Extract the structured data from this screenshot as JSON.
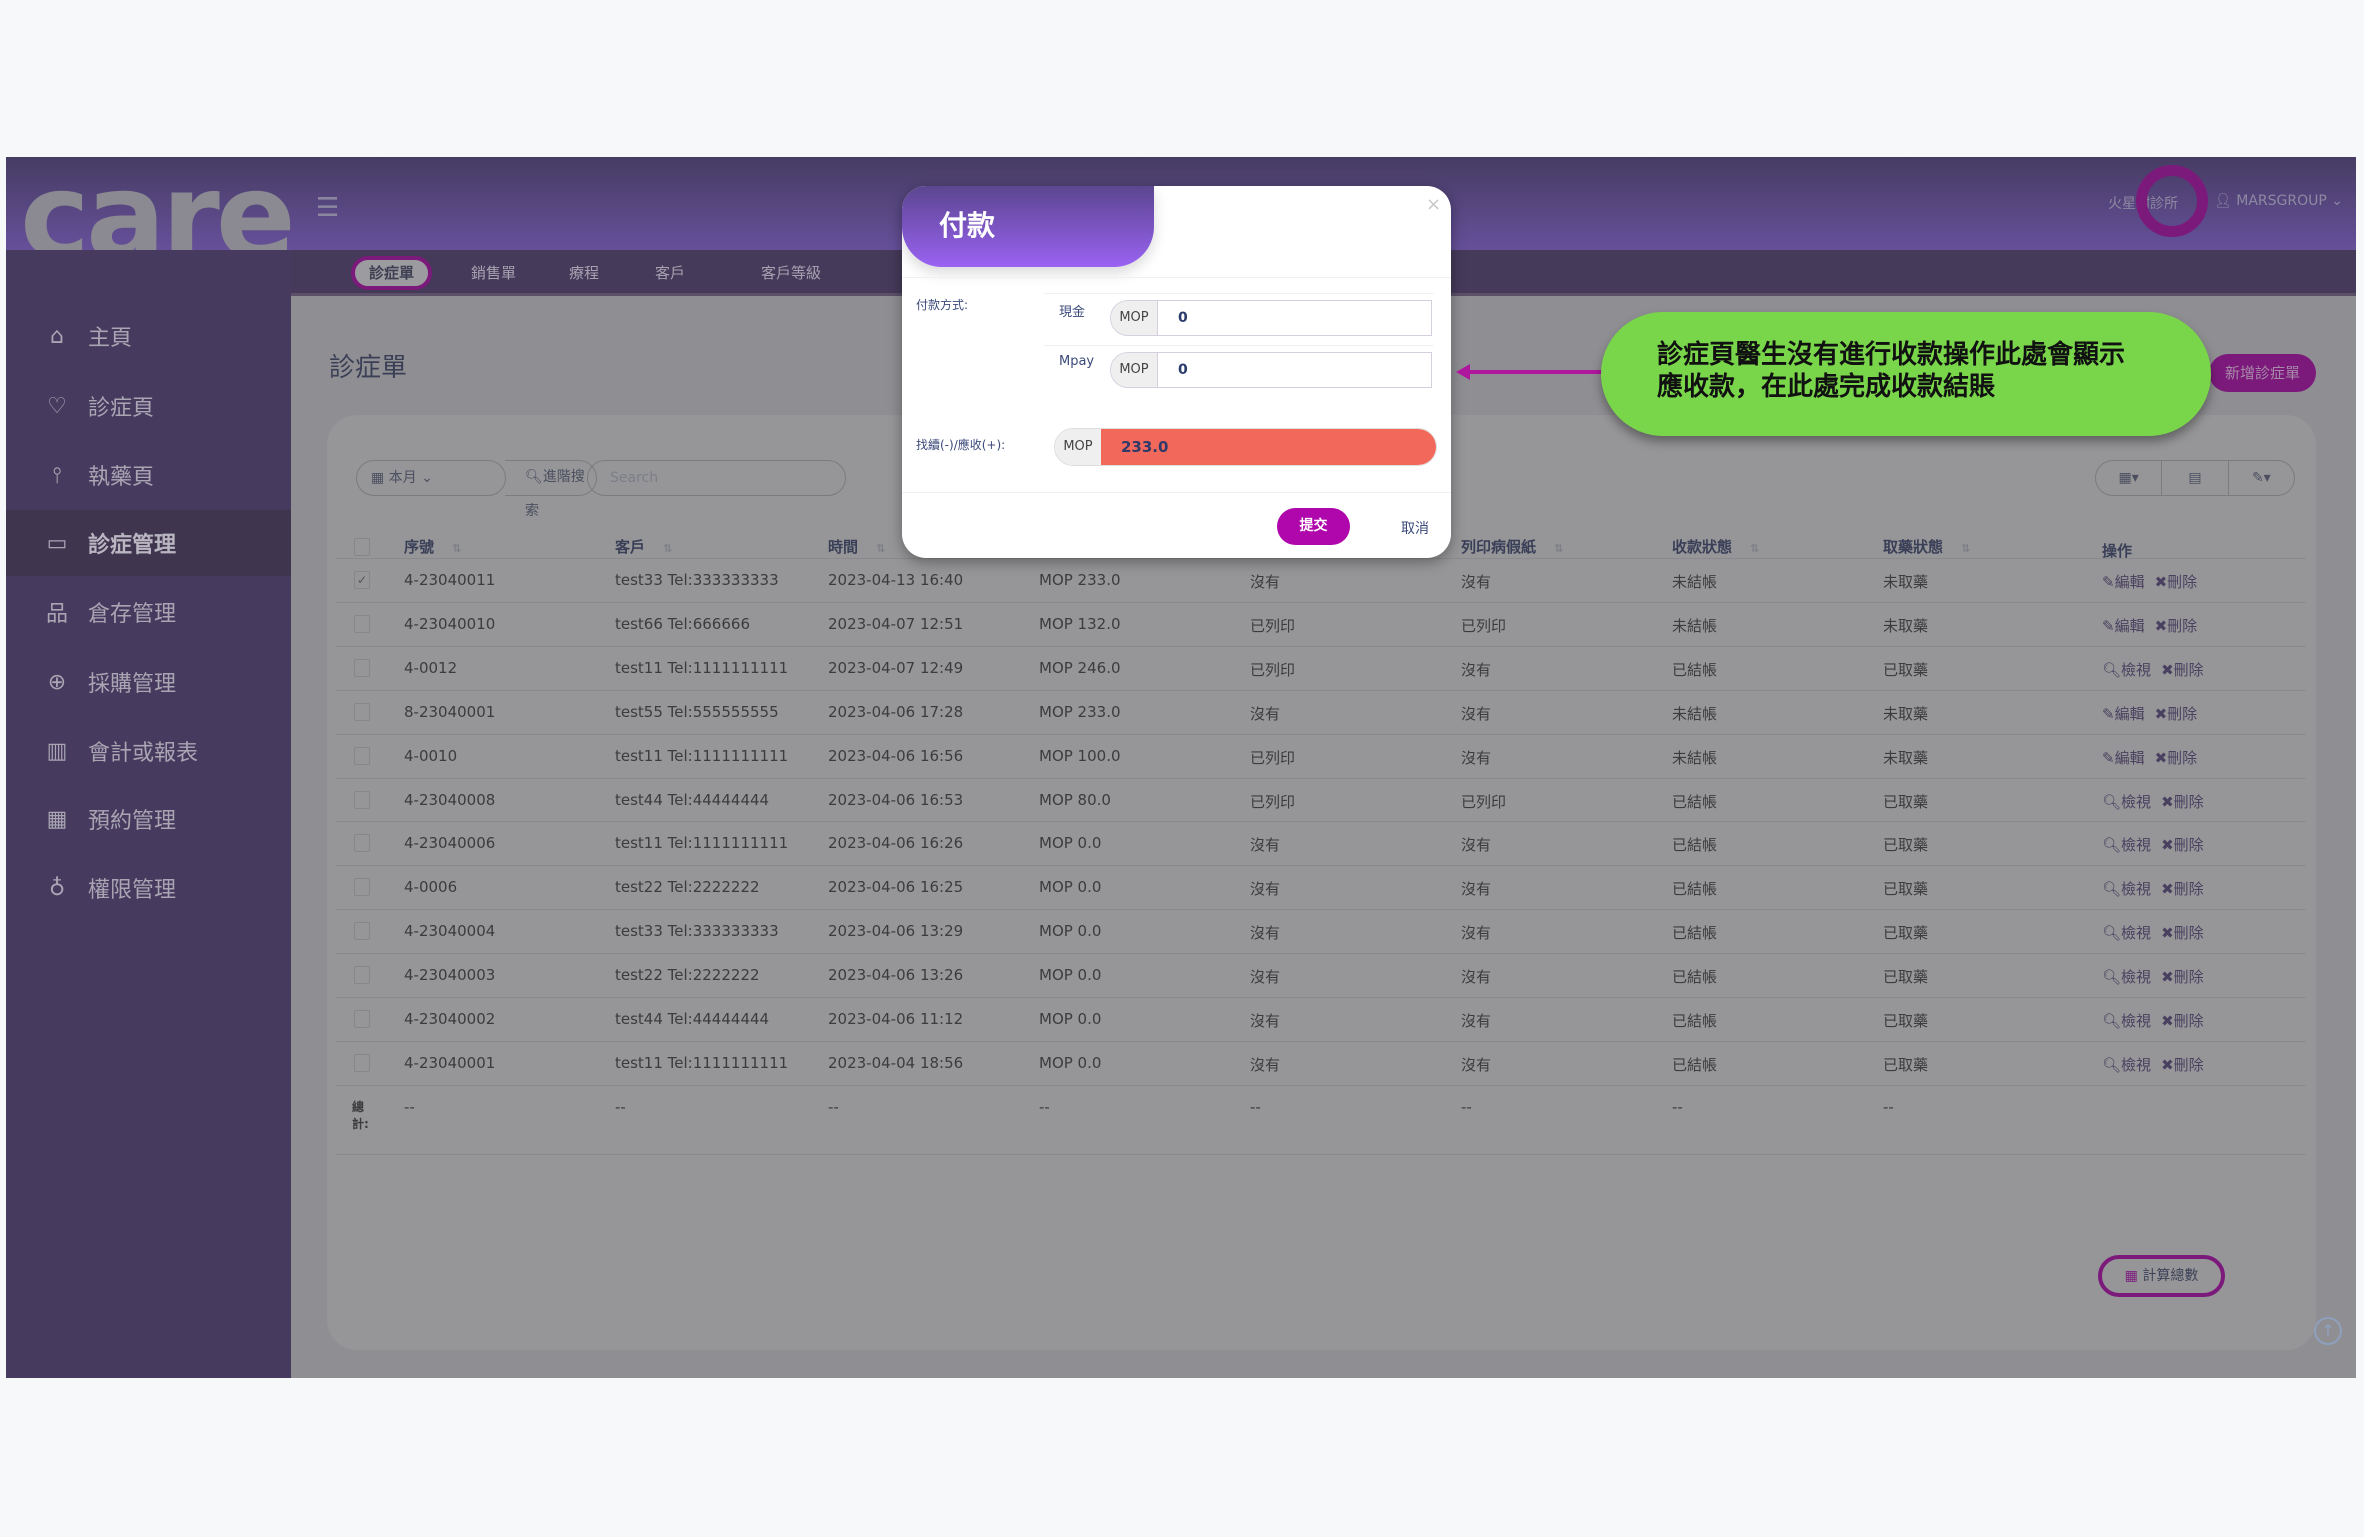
{
  "logo": {
    "text": "care"
  },
  "header": {
    "clinic": "火星樹診所",
    "user": "MARSGROUP"
  },
  "sidebar": {
    "items": [
      {
        "label": "主頁",
        "icon": "home-icon"
      },
      {
        "label": "診症頁",
        "icon": "heart-icon"
      },
      {
        "label": "執藥頁",
        "icon": "pestle-icon"
      },
      {
        "label": "診症管理",
        "icon": "card-icon",
        "active": true
      },
      {
        "label": "倉存管理",
        "icon": "sitemap-icon"
      },
      {
        "label": "採購管理",
        "icon": "plus-circle-icon"
      },
      {
        "label": "會計或報表",
        "icon": "bar-chart-icon"
      },
      {
        "label": "預約管理",
        "icon": "calendar-icon"
      },
      {
        "label": "權限管理",
        "icon": "globe-icon"
      }
    ]
  },
  "tabs": [
    {
      "label": "診症單",
      "active": true
    },
    {
      "label": "銷售單"
    },
    {
      "label": "療程"
    },
    {
      "label": "客戶"
    },
    {
      "label": "客戶等級"
    }
  ],
  "main": {
    "title": "診症單",
    "new_button": "新增診症單",
    "period_filter": "本月",
    "advanced_search": "進階搜索",
    "search_placeholder": "Search",
    "columns": [
      "序號",
      "客戶",
      "時間",
      "",
      "",
      "列印病假紙",
      "收款狀態",
      "取藥狀態",
      "操作"
    ],
    "rows": [
      {
        "checked": true,
        "id": "4-23040011",
        "customer": "test33 Tel:333333333",
        "time": "2023-04-13 16:40",
        "amount": "MOP 233.0",
        "c5": "沒有",
        "sick_note": "沒有",
        "payment": "未結帳",
        "pickup": "未取藥",
        "action": "edit"
      },
      {
        "id": "4-23040010",
        "customer": "test66 Tel:666666",
        "time": "2023-04-07 12:51",
        "amount": "MOP 132.0",
        "c5": "已列印",
        "sick_note": "已列印",
        "payment": "未結帳",
        "pickup": "未取藥",
        "action": "edit"
      },
      {
        "id": "4-0012",
        "customer": "test11 Tel:1111111111",
        "time": "2023-04-07 12:49",
        "amount": "MOP 246.0",
        "c5": "已列印",
        "sick_note": "沒有",
        "payment": "已結帳",
        "pickup": "已取藥",
        "action": "view"
      },
      {
        "id": "8-23040001",
        "customer": "test55 Tel:555555555",
        "time": "2023-04-06 17:28",
        "amount": "MOP 233.0",
        "c5": "沒有",
        "sick_note": "沒有",
        "payment": "未結帳",
        "pickup": "未取藥",
        "action": "edit"
      },
      {
        "id": "4-0010",
        "customer": "test11 Tel:1111111111",
        "time": "2023-04-06 16:56",
        "amount": "MOP 100.0",
        "c5": "已列印",
        "sick_note": "沒有",
        "payment": "未結帳",
        "pickup": "未取藥",
        "action": "edit"
      },
      {
        "id": "4-23040008",
        "customer": "test44 Tel:44444444",
        "time": "2023-04-06 16:53",
        "amount": "MOP 80.0",
        "c5": "已列印",
        "sick_note": "已列印",
        "payment": "已結帳",
        "pickup": "已取藥",
        "action": "view"
      },
      {
        "id": "4-23040006",
        "customer": "test11 Tel:1111111111",
        "time": "2023-04-06 16:26",
        "amount": "MOP 0.0",
        "c5": "沒有",
        "sick_note": "沒有",
        "payment": "已結帳",
        "pickup": "已取藥",
        "action": "view"
      },
      {
        "id": "4-0006",
        "customer": "test22 Tel:2222222",
        "time": "2023-04-06 16:25",
        "amount": "MOP 0.0",
        "c5": "沒有",
        "sick_note": "沒有",
        "payment": "已結帳",
        "pickup": "已取藥",
        "action": "view"
      },
      {
        "id": "4-23040004",
        "customer": "test33 Tel:333333333",
        "time": "2023-04-06 13:29",
        "amount": "MOP 0.0",
        "c5": "沒有",
        "sick_note": "沒有",
        "payment": "已結帳",
        "pickup": "已取藥",
        "action": "view"
      },
      {
        "id": "4-23040003",
        "customer": "test22 Tel:2222222",
        "time": "2023-04-06 13:26",
        "amount": "MOP 0.0",
        "c5": "沒有",
        "sick_note": "沒有",
        "payment": "已結帳",
        "pickup": "已取藥",
        "action": "view"
      },
      {
        "id": "4-23040002",
        "customer": "test44 Tel:44444444",
        "time": "2023-04-06 11:12",
        "amount": "MOP 0.0",
        "c5": "沒有",
        "sick_note": "沒有",
        "payment": "已結帳",
        "pickup": "已取藥",
        "action": "view"
      },
      {
        "id": "4-23040001",
        "customer": "test11 Tel:1111111111",
        "time": "2023-04-04 18:56",
        "amount": "MOP 0.0",
        "c5": "沒有",
        "sick_note": "沒有",
        "payment": "已結帳",
        "pickup": "已取藥",
        "action": "view"
      }
    ],
    "action_labels": {
      "edit": "編輯",
      "view": "檢視",
      "delete": "刪除"
    },
    "total_label": "總計:",
    "total_placeholder": "--",
    "calc_button": "計算總數"
  },
  "modal": {
    "title": "付款",
    "method_label": "付款方式:",
    "cash_label": "現金",
    "mpay_label": "Mpay",
    "currency": "MOP",
    "cash_value": "0",
    "mpay_value": "0",
    "balance_label": "找續(-)/應收(+):",
    "balance_value": "233.0",
    "submit": "提交",
    "cancel": "取消"
  },
  "callout": {
    "line1": "診症頁醫生沒有進行收款操作此處會顯示",
    "line2": "應收款，在此處完成收款結賬"
  },
  "colors": {
    "accent": "#7c1a7c",
    "submit": "#b007ad",
    "due": "#f2695b",
    "callout": "#79d64a",
    "modal_header": "#9a62f2"
  }
}
